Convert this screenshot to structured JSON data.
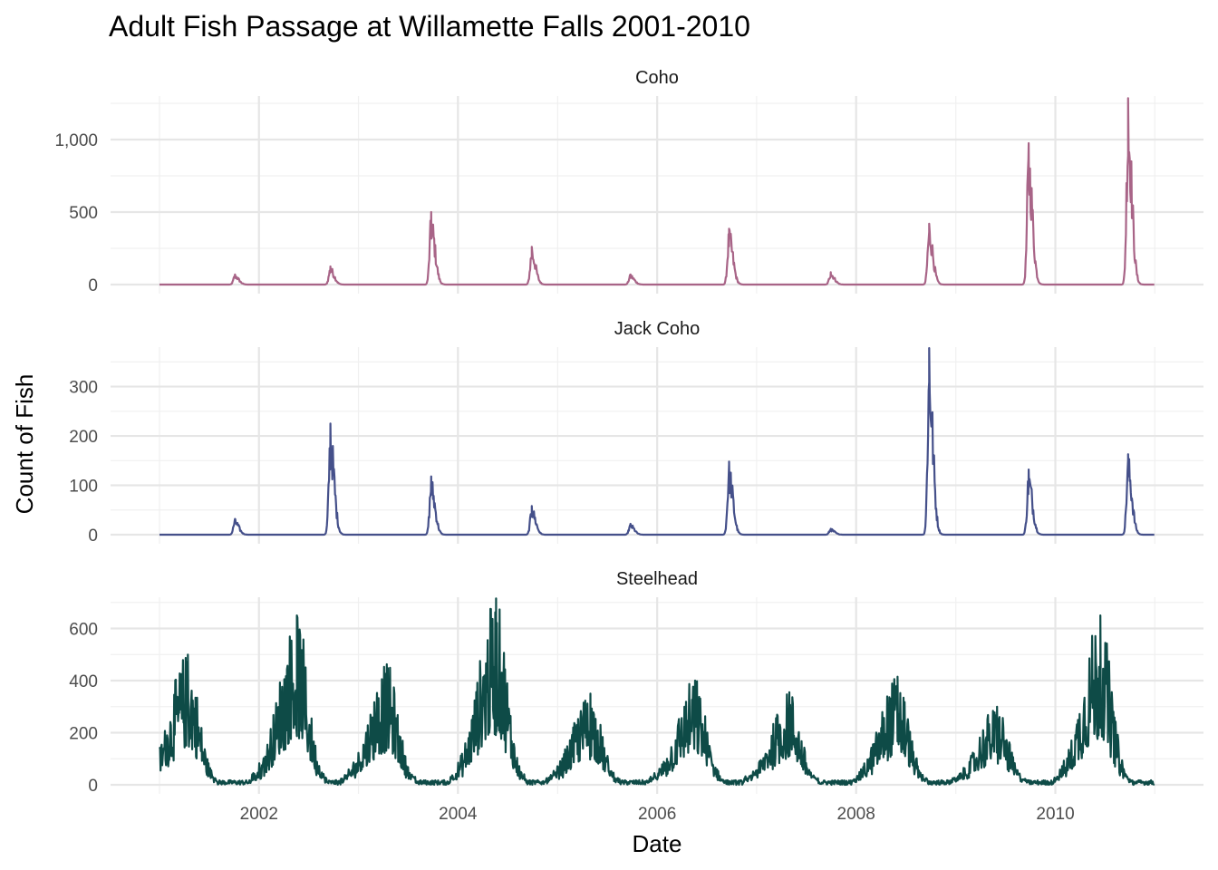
{
  "chart_data": {
    "type": "line",
    "title": "Adult Fish Passage at Willamette Falls 2001-2010",
    "xlabel": "Date",
    "ylabel": "Count of Fish",
    "xlim": [
      "2001-01-01",
      "2010-12-31"
    ],
    "x_ticks": [
      "2002",
      "2004",
      "2006",
      "2008",
      "2010"
    ],
    "grid": true,
    "legend": "none",
    "panels": [
      {
        "name": "Coho",
        "color": "#A86487",
        "ylim": [
          0,
          1300
        ],
        "y_ticks": [
          0,
          500,
          1000
        ],
        "y_tick_labels": [
          "0",
          "500",
          "1,000"
        ],
        "peaks": [
          {
            "date": "2001-10-05",
            "value": 70
          },
          {
            "date": "2002-09-20",
            "value": 125
          },
          {
            "date": "2003-09-25",
            "value": 500
          },
          {
            "date": "2004-09-28",
            "value": 260
          },
          {
            "date": "2005-09-25",
            "value": 70
          },
          {
            "date": "2006-09-22",
            "value": 385
          },
          {
            "date": "2007-09-30",
            "value": 85
          },
          {
            "date": "2008-09-25",
            "value": 420
          },
          {
            "date": "2009-09-25",
            "value": 975
          },
          {
            "date": "2010-09-25",
            "value": 1285
          }
        ]
      },
      {
        "name": "Jack Coho",
        "color": "#45508A",
        "ylim": [
          0,
          380
        ],
        "y_ticks": [
          0,
          100,
          200,
          300
        ],
        "y_tick_labels": [
          "0",
          "100",
          "200",
          "300"
        ],
        "peaks": [
          {
            "date": "2001-10-05",
            "value": 32
          },
          {
            "date": "2002-09-20",
            "value": 225
          },
          {
            "date": "2003-09-25",
            "value": 118
          },
          {
            "date": "2004-09-28",
            "value": 58
          },
          {
            "date": "2005-09-25",
            "value": 22
          },
          {
            "date": "2006-09-22",
            "value": 148
          },
          {
            "date": "2007-09-30",
            "value": 12
          },
          {
            "date": "2008-09-25",
            "value": 378
          },
          {
            "date": "2009-09-25",
            "value": 132
          },
          {
            "date": "2010-09-25",
            "value": 163
          }
        ]
      },
      {
        "name": "Steelhead",
        "color": "#0E4B47",
        "ylim": [
          0,
          720
        ],
        "y_ticks": [
          0,
          200,
          400,
          600
        ],
        "y_tick_labels": [
          "0",
          "200",
          "400",
          "600"
        ],
        "seasons": [
          {
            "date": "2001-04-15",
            "value": 500
          },
          {
            "date": "2002-05-20",
            "value": 650
          },
          {
            "date": "2003-04-15",
            "value": 460
          },
          {
            "date": "2004-05-20",
            "value": 715
          },
          {
            "date": "2005-05-01",
            "value": 350
          },
          {
            "date": "2006-05-20",
            "value": 400
          },
          {
            "date": "2007-05-01",
            "value": 355
          },
          {
            "date": "2008-06-01",
            "value": 415
          },
          {
            "date": "2009-06-01",
            "value": 300
          },
          {
            "date": "2010-06-15",
            "value": 650
          }
        ]
      }
    ]
  }
}
